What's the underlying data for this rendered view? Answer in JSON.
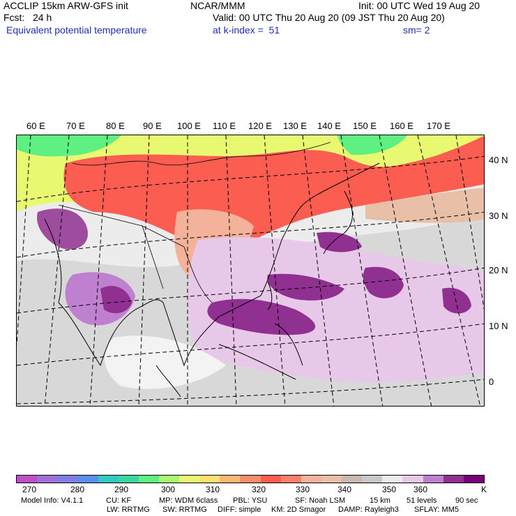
{
  "header": {
    "model": "ACCLIP 15km ARW-GFS init",
    "center": "NCAR/MMM",
    "init": "Init: 00 UTC Wed 19 Aug 20",
    "fcst": "Fcst:   24 h",
    "valid": "Valid: 00 UTC Thu 20 Aug 20 (09 JST Thu 20 Aug 20)",
    "field": "Equivalent potential temperature",
    "level": "at k-index =  51",
    "smooth": "sm= 2"
  },
  "map": {
    "lon_labels": [
      "60 E",
      "70 E",
      "80 E",
      "90 E",
      "100 E",
      "110 E",
      "120 E",
      "130 E",
      "140 E",
      "150 E",
      "160 E",
      "170 E"
    ],
    "lat_labels": [
      "40 N",
      "30 N",
      "20 N",
      "10 N",
      "0"
    ]
  },
  "colorbar": {
    "colors": [
      "#c050c8",
      "#a070d8",
      "#7f7fe6",
      "#5a8ff0",
      "#33c9c0",
      "#38d8a0",
      "#5ef080",
      "#a8f870",
      "#e8f870",
      "#fde070",
      "#fcb870",
      "#fb8e6a",
      "#fb5e50",
      "#fb7e68",
      "#f5b29a",
      "#e8c0a8",
      "#c8b8b0",
      "#c8c8c8",
      "#ececec",
      "#e8c8e8",
      "#c080d0",
      "#903090",
      "#780078"
    ],
    "labels": [
      "270",
      "280",
      "290",
      "300",
      "310",
      "320",
      "330",
      "340",
      "350",
      "360"
    ],
    "unit": "K"
  },
  "footer": {
    "line1": [
      "Model Info: V4.1.1",
      "CU: KF",
      "MP: WDM 6class",
      "PBL: YSU",
      "SF: Noah LSM",
      "15 km",
      "51 levels",
      "90 sec"
    ],
    "line2": [
      "LW: RRTMG",
      "SW: RRTMG",
      "DIFF: simple",
      "KM: 2D Smagor",
      "DAMP: Rayleigh3",
      "SFLAY: MM5"
    ]
  }
}
